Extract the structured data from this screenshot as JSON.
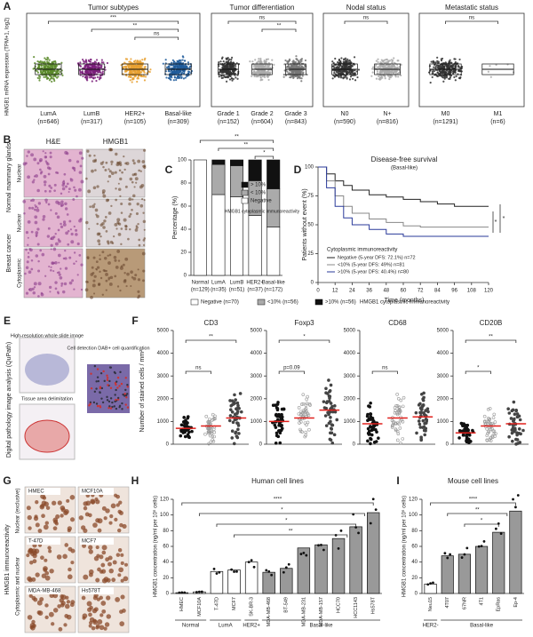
{
  "panelA": {
    "letter": "A",
    "ylabel": "HMGB1 mRNA expression (TPM+1, log2)",
    "plots": [
      {
        "title": "Tumor subtypes",
        "sig": [
          "***",
          "**",
          "ns"
        ],
        "groups": [
          {
            "label": "LumA",
            "n": "(n=646)",
            "color": "#5a8a2a"
          },
          {
            "label": "LumB",
            "n": "(n=317)",
            "color": "#7a1f7a"
          },
          {
            "label": "HER2+",
            "n": "(n=105)",
            "color": "#e8a030"
          },
          {
            "label": "Basal-like",
            "n": "(n=309)",
            "color": "#1f5a9a"
          }
        ]
      },
      {
        "title": "Tumor differentiation",
        "sig": [
          "ns",
          "**"
        ],
        "groups": [
          {
            "label": "Grade 1",
            "n": "(n=152)",
            "color": "#333333"
          },
          {
            "label": "Grade 2",
            "n": "(n=604)",
            "color": "#aaaaaa"
          },
          {
            "label": "Grade 3",
            "n": "(n=843)",
            "color": "#777777"
          }
        ]
      },
      {
        "title": "Nodal status",
        "sig": [
          "ns"
        ],
        "groups": [
          {
            "label": "N0",
            "n": "(n=590)",
            "color": "#333333"
          },
          {
            "label": "N+",
            "n": "(n=816)",
            "color": "#aaaaaa"
          }
        ]
      },
      {
        "title": "Metastatic status",
        "sig": [
          "ns"
        ],
        "groups": [
          {
            "label": "M0",
            "n": "(n=1291)",
            "color": "#333333"
          },
          {
            "label": "M1",
            "n": "(n=6)",
            "color": "#aaaaaa"
          }
        ]
      }
    ]
  },
  "panelB": {
    "letter": "B",
    "cols": [
      "H&E",
      "HMGB1"
    ],
    "rows": [
      "Normal mammary glands",
      "Breast cancer"
    ],
    "sublabels": [
      "Nuclear",
      "Nuclear",
      "Cytoplasmic"
    ]
  },
  "panelC": {
    "letter": "C",
    "ylabel": "Percentage (%)",
    "ylim": [
      0,
      100
    ],
    "yticks": [
      0,
      20,
      40,
      60,
      80,
      100
    ],
    "categories": [
      "Normal",
      "LumA",
      "LumB",
      "HER2+",
      "Basal-like"
    ],
    "n": [
      "(n=129)",
      "(n=35)",
      "(n=51)",
      "(n=37)",
      "(n=172)"
    ],
    "series": [
      {
        "name": "Negative",
        "color": "#ffffff",
        "values": [
          100,
          70,
          68,
          52,
          42
        ]
      },
      {
        "name": "< 10%",
        "color": "#aaaaaa",
        "values": [
          0,
          26,
          27,
          30,
          33
        ]
      },
      {
        "name": "> 10%",
        "color": "#111111",
        "values": [
          0,
          4,
          5,
          18,
          25
        ]
      }
    ],
    "legend_title": "HMGB1 cytoplasmic immunoreactivity",
    "sig": [
      "**",
      "**",
      "*"
    ]
  },
  "panelD": {
    "letter": "D",
    "title": "Disease-free survival",
    "subtitle": "(Basal-like)",
    "ylabel": "Patients without event (%)",
    "xlabel": "Time (months)",
    "xlim": [
      0,
      120
    ],
    "xticks": [
      0,
      12,
      24,
      36,
      48,
      60,
      72,
      84,
      96,
      108,
      120
    ],
    "ylim": [
      0,
      100
    ],
    "yticks": [
      0,
      25,
      50,
      75,
      100
    ],
    "x": [
      0,
      6,
      12,
      18,
      24,
      36,
      48,
      60,
      72,
      84,
      96,
      108,
      120
    ],
    "legend_title": "Cytoplasmic immunoreactivity",
    "sig": [
      "*",
      "*"
    ],
    "series": [
      {
        "name": "Negative (5-year DFS: 72.1%) n=72",
        "color": "#222222",
        "values": [
          100,
          94,
          88,
          84,
          80,
          76,
          74,
          72,
          70,
          68,
          66,
          66,
          66
        ]
      },
      {
        "name": "<10% (5-year DFS: 49%) n=81",
        "color": "#888888",
        "values": [
          100,
          88,
          75,
          66,
          60,
          55,
          52,
          49,
          48,
          48,
          48,
          48,
          48
        ]
      },
      {
        "name": ">10% (5-year DFS: 40.4%) n=80",
        "color": "#2a3a9a",
        "values": [
          100,
          82,
          66,
          56,
          50,
          46,
          42,
          40,
          40,
          40,
          40,
          40,
          40
        ]
      }
    ]
  },
  "legendRow": [
    "Negative (n=70)",
    "<10% (n=56)",
    ">10% (n=56)",
    "HMGB1 cytoplasmic immunoreactivity"
  ],
  "panelE": {
    "letter": "E",
    "side": "Digital pathology image analysis (QuPath)",
    "steps": [
      "High-resolution whole slide image",
      "Tissue area delimitation",
      "Cell detection DAB+ cell quantification"
    ]
  },
  "panelF": {
    "letter": "F",
    "ylabel": "Number of stained cells / mm²",
    "ylim": [
      0,
      5000
    ],
    "yticks": [
      0,
      1000,
      2000,
      3000,
      4000,
      5000
    ],
    "plots": [
      {
        "title": "CD3",
        "medians": [
          700,
          800,
          1150
        ],
        "sig": [
          "ns",
          "**"
        ]
      },
      {
        "title": "Foxp3",
        "medians": [
          1000,
          1150,
          1500
        ],
        "sig": [
          "p=0.09",
          "*"
        ]
      },
      {
        "title": "CD68",
        "medians": [
          900,
          1150,
          1200
        ],
        "sig": [
          "ns"
        ]
      },
      {
        "title": "CD20B",
        "medians": [
          500,
          800,
          900
        ],
        "sig": [
          "*",
          "**"
        ]
      }
    ]
  },
  "panelG": {
    "letter": "G",
    "side": "HMGB1 immunoreactivity",
    "rows": [
      "Nuclear (exclusive)",
      "Cytoplasmic and nuclear"
    ],
    "cells": [
      "HMEC",
      "MCF10A",
      "T-47D",
      "MCF7",
      "MDA-MB-468",
      "Hs578T"
    ]
  },
  "panelH": {
    "letter": "H",
    "title": "Human cell lines",
    "ylabel": "HMGB1 concentration (ng/ml per 10⁶ cells)",
    "ylim": [
      0,
      120
    ],
    "yticks": [
      0,
      20,
      40,
      60,
      80,
      100,
      120
    ],
    "sig": [
      "****",
      "*",
      "*",
      "**"
    ],
    "groups": [
      {
        "name": "Normal",
        "color": "#ffffff",
        "categories": [
          "HMEC",
          "MCF10A"
        ],
        "values": [
          1,
          2
        ]
      },
      {
        "name": "LumA",
        "color": "#ffffff",
        "categories": [
          "T-47D",
          "MCF7"
        ],
        "values": [
          28,
          30
        ]
      },
      {
        "name": "HER2+",
        "color": "#ffffff",
        "categories": [
          "SK-BR-3"
        ],
        "values": [
          40
        ]
      },
      {
        "name": "Basal-like",
        "color": "#999999",
        "categories": [
          "MDA-MB-468",
          "BT-549",
          "MDA-MB-231",
          "MDA-MB-157",
          "HCC70",
          "HCC1143",
          "Hs578T"
        ],
        "values": [
          27,
          32,
          58,
          62,
          70,
          85,
          103
        ]
      }
    ]
  },
  "panelI": {
    "letter": "I",
    "title": "Mouse cell lines",
    "ylabel": "HMGB1 concentration (ng/ml per 10⁶ cells)",
    "ylim": [
      0,
      120
    ],
    "yticks": [
      0,
      20,
      40,
      60,
      80,
      100,
      120
    ],
    "sig": [
      "****",
      "**",
      "*"
    ],
    "groups": [
      {
        "name": "HER2-",
        "color": "#ffffff",
        "categories": [
          "Neu15"
        ],
        "values": [
          12
        ]
      },
      {
        "name": "Basal-like",
        "color": "#999999",
        "categories": [
          "4T07",
          "67NR",
          "4T1",
          "EpRas",
          "Ep-4"
        ],
        "values": [
          48,
          50,
          60,
          78,
          105
        ]
      }
    ]
  }
}
